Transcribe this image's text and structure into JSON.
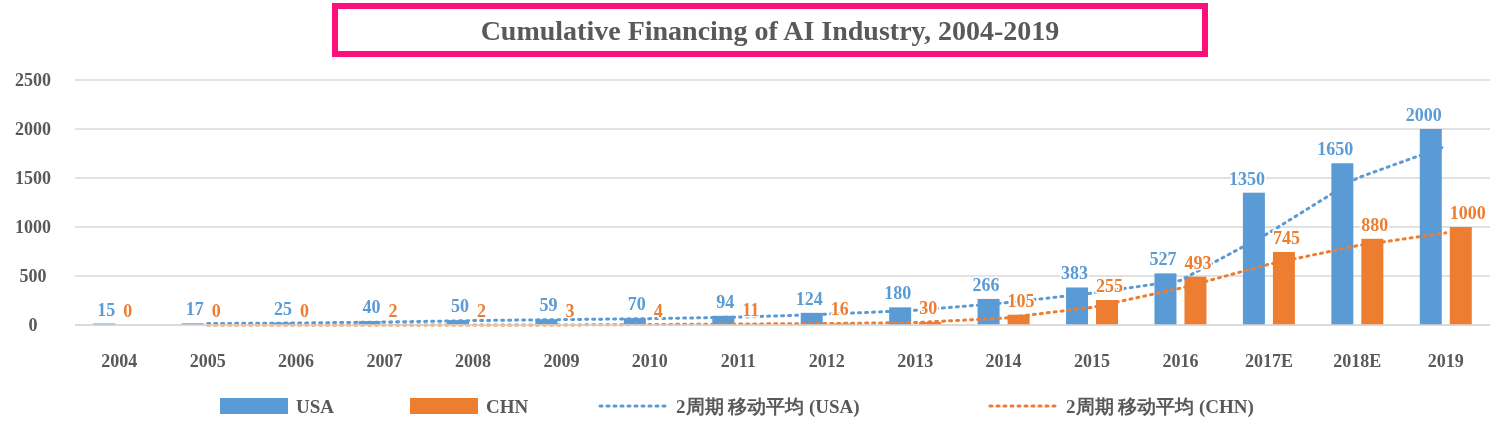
{
  "chart_data": {
    "type": "bar",
    "title": "Cumulative Financing of AI Industry, 2004-2019",
    "categories": [
      "2004",
      "2005",
      "2006",
      "2007",
      "2008",
      "2009",
      "2010",
      "2011",
      "2012",
      "2013",
      "2014",
      "2015",
      "2016",
      "2017E",
      "2018E",
      "2019"
    ],
    "series": [
      {
        "name": "USA",
        "color": "#5b9bd5",
        "values": [
          15,
          17,
          25,
          40,
          50,
          59,
          70,
          94,
          124,
          180,
          266,
          383,
          527,
          1350,
          1650,
          2000
        ],
        "value_labels": [
          "15",
          "17",
          "25",
          "40",
          "50",
          "59",
          "70",
          "94",
          "124",
          "180",
          "266",
          "383",
          "527",
          "1350",
          "1650",
          "2000"
        ]
      },
      {
        "name": "CHN",
        "color": "#ed7d31",
        "values": [
          0,
          0,
          0,
          2,
          2,
          3,
          4,
          11,
          16,
          30,
          105,
          255,
          493,
          745,
          880,
          1000
        ],
        "value_labels": [
          "0",
          "0",
          "0",
          "2",
          "2",
          "3",
          "4",
          "11",
          "16",
          "30",
          "105",
          "255",
          "493",
          "745",
          "880",
          "1000"
        ]
      },
      {
        "name": "2周期 移动平均 (USA)",
        "type": "line",
        "line_style": "dotted",
        "color": "#5b9bd5",
        "values": [
          null,
          15,
          20,
          30,
          45,
          55,
          65,
          80,
          110,
          150,
          225,
          325,
          455,
          940,
          1500,
          1825
        ]
      },
      {
        "name": "2周期 移动平均 (CHN)",
        "type": "line",
        "line_style": "dotted",
        "color": "#ed7d31",
        "values": [
          null,
          0,
          0,
          0,
          0,
          0,
          5,
          10,
          15,
          25,
          70,
          180,
          375,
          620,
          810,
          940
        ]
      }
    ],
    "ylim": [
      0,
      2500
    ],
    "yticks": [
      0,
      500,
      1000,
      1500,
      2000,
      2500
    ],
    "grid": "y",
    "legend": "bottom"
  }
}
